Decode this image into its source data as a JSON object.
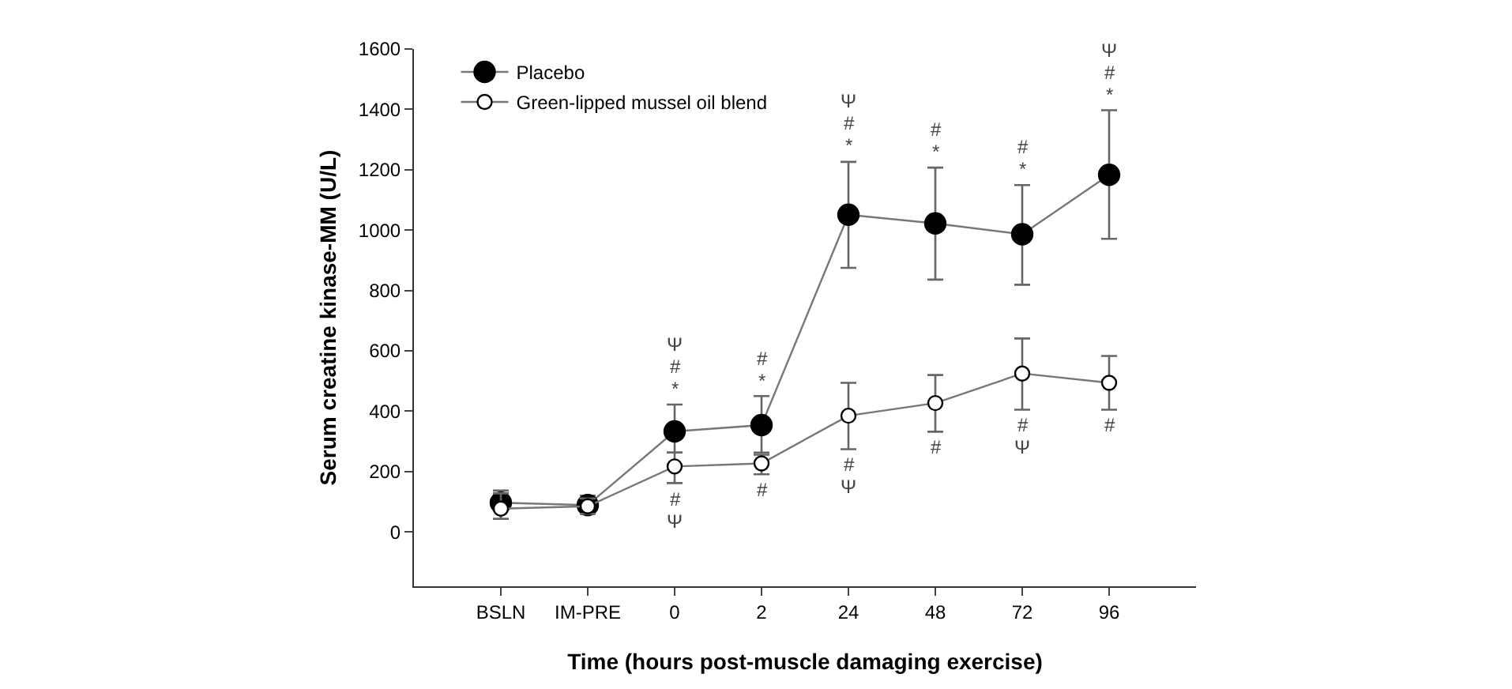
{
  "chart_data": {
    "type": "line",
    "xlabel": "Time (hours post-muscle damaging exercise)",
    "ylabel": "Serum creatine kinase-MM (U/L)",
    "categories": [
      "BSLN",
      "IM-PRE",
      "0",
      "2",
      "24",
      "48",
      "72",
      "96"
    ],
    "ylim": [
      -180,
      1600
    ],
    "yticks": [
      0,
      200,
      400,
      600,
      800,
      1000,
      1200,
      1400,
      1600
    ],
    "legend": "top left",
    "marker": "circle",
    "line_style": "solid",
    "series": [
      {
        "name": "Placebo",
        "color": "#000000",
        "values": [
          97,
          89,
          333,
          354,
          1051,
          1022,
          986,
          1183
        ],
        "errors": [
          [
            43,
            137
          ],
          [
            60,
            120
          ],
          [
            263,
            422
          ],
          [
            263,
            450
          ],
          [
            875,
            1226
          ],
          [
            836,
            1207
          ],
          [
            819,
            1149
          ],
          [
            971,
            1397
          ]
        ]
      },
      {
        "name": "Green-lipped mussel oil blend",
        "color": "#ffffff",
        "values": [
          77,
          85,
          217,
          227,
          385,
          427,
          525,
          494
        ],
        "errors": [
          [
            43,
            128
          ],
          [
            60,
            111
          ],
          [
            162,
            263
          ],
          [
            191,
            256
          ],
          [
            274,
            494
          ],
          [
            332,
            520
          ],
          [
            405,
            641
          ],
          [
            405,
            583
          ]
        ]
      }
    ],
    "annotations": [
      {
        "text": "*",
        "x": "0",
        "y": 422
      },
      {
        "text": "#",
        "x": "0",
        "y": 422
      },
      {
        "text": "Ψ",
        "x": "0",
        "y": 422
      },
      {
        "text": "*",
        "x": "2",
        "y": 450
      },
      {
        "text": "#",
        "x": "2",
        "y": 450
      },
      {
        "text": "*",
        "x": "24",
        "y": 1226
      },
      {
        "text": "#",
        "x": "24",
        "y": 1226
      },
      {
        "text": "Ψ",
        "x": "24",
        "y": 1226
      },
      {
        "text": "*",
        "x": "48",
        "y": 1207
      },
      {
        "text": "#",
        "x": "48",
        "y": 1207
      },
      {
        "text": "*",
        "x": "72",
        "y": 1149
      },
      {
        "text": "#",
        "x": "72",
        "y": 1149
      },
      {
        "text": "*",
        "x": "96",
        "y": 1397
      },
      {
        "text": "#",
        "x": "96",
        "y": 1397
      },
      {
        "text": "Ψ",
        "x": "96",
        "y": 1397
      },
      {
        "text": "#",
        "x": "0",
        "y": 162
      },
      {
        "text": "Ψ",
        "x": "0",
        "y": 162
      },
      {
        "text": "#",
        "x": "2",
        "y": 191
      },
      {
        "text": "#",
        "x": "24",
        "y": 274
      },
      {
        "text": "Ψ",
        "x": "24",
        "y": 274
      },
      {
        "text": "#",
        "x": "48",
        "y": 332
      },
      {
        "text": "#",
        "x": "72",
        "y": 405
      },
      {
        "text": "Ψ",
        "x": "72",
        "y": 405
      },
      {
        "text": "#",
        "x": "96",
        "y": 405
      }
    ]
  }
}
